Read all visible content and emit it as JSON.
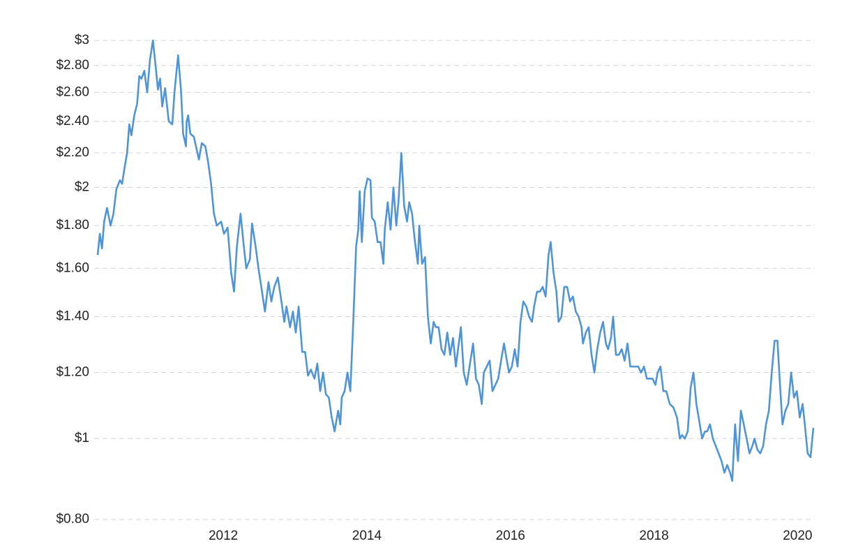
{
  "chart_data": {
    "type": "line",
    "log_scale_y": true,
    "grid": true,
    "xlim": [
      2010.25,
      2020.22
    ],
    "xticks": [
      2012,
      2014,
      2016,
      2018,
      2020
    ],
    "ylim": [
      0.8,
      3
    ],
    "yticks": [
      {
        "value": 0.8,
        "label": "$0.80"
      },
      {
        "value": 1,
        "label": "$1"
      },
      {
        "value": 1.2,
        "label": "$1.20"
      },
      {
        "value": 1.4,
        "label": "$1.40"
      },
      {
        "value": 1.6,
        "label": "$1.60"
      },
      {
        "value": 1.8,
        "label": "$1.80"
      },
      {
        "value": 2,
        "label": "$2"
      },
      {
        "value": 2.2,
        "label": "$2.20"
      },
      {
        "value": 2.4,
        "label": "$2.40"
      },
      {
        "value": 2.6,
        "label": "$2.60"
      },
      {
        "value": 2.8,
        "label": "$2.80"
      },
      {
        "value": 3,
        "label": "$3"
      }
    ],
    "color": "#4f94d6",
    "x": [
      2010.25,
      2010.28,
      2010.31,
      2010.34,
      2010.38,
      2010.43,
      2010.47,
      2010.51,
      2010.56,
      2010.59,
      2010.62,
      2010.66,
      2010.69,
      2010.72,
      2010.76,
      2010.8,
      2010.83,
      2010.86,
      2010.9,
      2010.94,
      2010.98,
      2011.02,
      2011.06,
      2011.09,
      2011.12,
      2011.15,
      2011.19,
      2011.24,
      2011.29,
      2011.32,
      2011.37,
      2011.41,
      2011.44,
      2011.48,
      2011.49,
      2011.51,
      2011.54,
      2011.59,
      2011.66,
      2011.7,
      2011.75,
      2011.79,
      2011.83,
      2011.87,
      2011.91,
      2011.97,
      2012.01,
      2012.06,
      2012.11,
      2012.15,
      2012.19,
      2012.24,
      2012.28,
      2012.32,
      2012.37,
      2012.4,
      2012.45,
      2012.49,
      2012.53,
      2012.58,
      2012.63,
      2012.67,
      2012.71,
      2012.76,
      2012.8,
      2012.85,
      2012.88,
      2012.93,
      2012.97,
      2013.01,
      2013.05,
      2013.1,
      2013.14,
      2013.18,
      2013.22,
      2013.27,
      2013.31,
      2013.35,
      2013.39,
      2013.43,
      2013.47,
      2013.51,
      2013.55,
      2013.6,
      2013.63,
      2013.65,
      2013.69,
      2013.73,
      2013.77,
      2013.81,
      2013.85,
      2013.88,
      2013.9,
      2013.93,
      2013.97,
      2014.01,
      2014.05,
      2014.07,
      2014.11,
      2014.15,
      2014.19,
      2014.23,
      2014.25,
      2014.29,
      2014.33,
      2014.37,
      2014.41,
      2014.44,
      2014.48,
      2014.52,
      2014.56,
      2014.59,
      2014.63,
      2014.67,
      2014.71,
      2014.73,
      2014.77,
      2014.81,
      2014.85,
      2014.89,
      2014.93,
      2014.96,
      2015.0,
      2015.04,
      2015.08,
      2015.12,
      2015.16,
      2015.2,
      2015.24,
      2015.27,
      2015.31,
      2015.35,
      2015.39,
      2015.43,
      2015.48,
      2015.52,
      2015.56,
      2015.6,
      2015.63,
      2015.67,
      2015.71,
      2015.75,
      2015.79,
      2015.83,
      2015.87,
      2015.91,
      2015.95,
      2015.98,
      2016.02,
      2016.06,
      2016.1,
      2016.14,
      2016.18,
      2016.22,
      2016.26,
      2016.3,
      2016.33,
      2016.37,
      2016.41,
      2016.45,
      2016.49,
      2016.53,
      2016.56,
      2016.6,
      2016.64,
      2016.67,
      2016.71,
      2016.75,
      2016.79,
      2016.83,
      2016.87,
      2016.91,
      2016.95,
      2016.99,
      2017.01,
      2017.05,
      2017.09,
      2017.13,
      2017.17,
      2017.21,
      2017.25,
      2017.29,
      2017.33,
      2017.36,
      2017.4,
      2017.43,
      2017.47,
      2017.51,
      2017.55,
      2017.59,
      2017.63,
      2017.67,
      2017.7,
      2017.74,
      2017.78,
      2017.82,
      2017.86,
      2017.9,
      2017.94,
      2017.98,
      2018.02,
      2018.05,
      2018.09,
      2018.13,
      2018.17,
      2018.22,
      2018.27,
      2018.32,
      2018.36,
      2018.39,
      2018.43,
      2018.47,
      2018.51,
      2018.55,
      2018.59,
      2018.63,
      2018.67,
      2018.71,
      2018.74,
      2018.78,
      2018.82,
      2018.86,
      2018.9,
      2018.94,
      2018.98,
      2019.02,
      2019.06,
      2019.09,
      2019.13,
      2019.17,
      2019.21,
      2019.25,
      2019.29,
      2019.33,
      2019.37,
      2019.4,
      2019.44,
      2019.48,
      2019.52,
      2019.56,
      2019.6,
      2019.64,
      2019.68,
      2019.72,
      2019.75,
      2019.79,
      2019.83,
      2019.87,
      2019.91,
      2019.95,
      2019.99,
      2020.03,
      2020.07,
      2020.1,
      2020.14,
      2020.18,
      2020.22
    ],
    "values": [
      1.66,
      1.76,
      1.69,
      1.82,
      1.89,
      1.8,
      1.86,
      1.99,
      2.04,
      2.02,
      2.1,
      2.2,
      2.38,
      2.31,
      2.44,
      2.52,
      2.72,
      2.7,
      2.76,
      2.6,
      2.85,
      3.0,
      2.78,
      2.62,
      2.7,
      2.5,
      2.63,
      2.4,
      2.38,
      2.6,
      2.88,
      2.62,
      2.32,
      2.24,
      2.4,
      2.44,
      2.32,
      2.3,
      2.16,
      2.26,
      2.24,
      2.14,
      2.02,
      1.86,
      1.8,
      1.82,
      1.76,
      1.79,
      1.58,
      1.5,
      1.7,
      1.86,
      1.72,
      1.6,
      1.64,
      1.81,
      1.7,
      1.6,
      1.52,
      1.42,
      1.54,
      1.46,
      1.52,
      1.56,
      1.48,
      1.38,
      1.44,
      1.36,
      1.42,
      1.34,
      1.44,
      1.27,
      1.27,
      1.19,
      1.21,
      1.18,
      1.23,
      1.14,
      1.2,
      1.13,
      1.12,
      1.06,
      1.02,
      1.08,
      1.04,
      1.12,
      1.14,
      1.2,
      1.14,
      1.38,
      1.7,
      1.78,
      1.98,
      1.72,
      1.98,
      2.05,
      2.04,
      1.84,
      1.82,
      1.72,
      1.72,
      1.62,
      1.78,
      1.92,
      1.78,
      2.0,
      1.8,
      1.92,
      2.2,
      1.9,
      1.82,
      1.92,
      1.86,
      1.72,
      1.62,
      1.8,
      1.62,
      1.65,
      1.4,
      1.3,
      1.38,
      1.36,
      1.36,
      1.28,
      1.26,
      1.34,
      1.26,
      1.32,
      1.22,
      1.28,
      1.36,
      1.2,
      1.16,
      1.22,
      1.3,
      1.18,
      1.16,
      1.1,
      1.2,
      1.22,
      1.24,
      1.14,
      1.16,
      1.18,
      1.24,
      1.3,
      1.24,
      1.2,
      1.22,
      1.28,
      1.22,
      1.38,
      1.46,
      1.44,
      1.4,
      1.38,
      1.44,
      1.5,
      1.5,
      1.52,
      1.48,
      1.66,
      1.72,
      1.58,
      1.5,
      1.38,
      1.4,
      1.52,
      1.52,
      1.46,
      1.48,
      1.42,
      1.4,
      1.36,
      1.3,
      1.34,
      1.36,
      1.26,
      1.2,
      1.28,
      1.34,
      1.38,
      1.3,
      1.28,
      1.32,
      1.4,
      1.26,
      1.26,
      1.28,
      1.24,
      1.3,
      1.22,
      1.22,
      1.22,
      1.22,
      1.2,
      1.22,
      1.18,
      1.18,
      1.18,
      1.16,
      1.2,
      1.22,
      1.14,
      1.14,
      1.1,
      1.09,
      1.06,
      1.0,
      1.01,
      1.0,
      1.02,
      1.15,
      1.2,
      1.1,
      1.05,
      1.0,
      1.02,
      1.02,
      1.04,
      1.0,
      0.98,
      0.96,
      0.94,
      0.91,
      0.93,
      0.91,
      0.89,
      1.04,
      0.94,
      1.08,
      1.04,
      1.0,
      0.96,
      0.98,
      1.0,
      0.97,
      0.96,
      0.98,
      1.04,
      1.08,
      1.2,
      1.31,
      1.31,
      1.18,
      1.04,
      1.08,
      1.1,
      1.2,
      1.12,
      1.14,
      1.06,
      1.1,
      1.04,
      0.96,
      0.95,
      1.03
    ]
  }
}
